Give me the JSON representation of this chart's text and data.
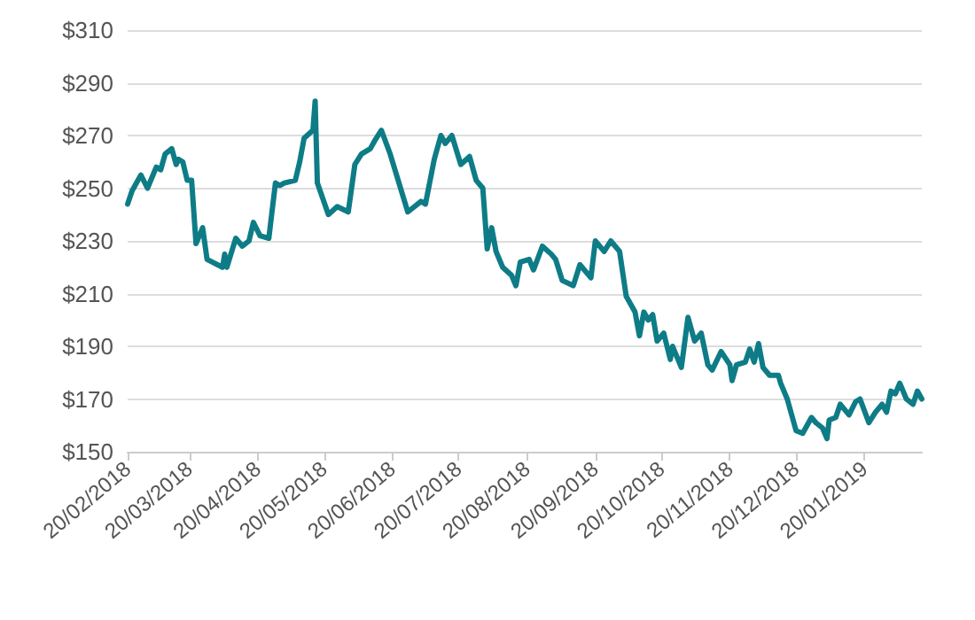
{
  "chart_data": {
    "type": "line",
    "x": [
      "2018-02-20",
      "2018-02-22",
      "2018-02-26",
      "2018-03-01",
      "2018-03-05",
      "2018-03-07",
      "2018-03-09",
      "2018-03-12",
      "2018-03-14",
      "2018-03-15",
      "2018-03-17",
      "2018-03-19",
      "2018-03-21",
      "2018-03-23",
      "2018-03-26",
      "2018-03-28",
      "2018-04-04",
      "2018-04-05",
      "2018-04-06",
      "2018-04-10",
      "2018-04-13",
      "2018-04-16",
      "2018-04-18",
      "2018-04-21",
      "2018-04-25",
      "2018-04-28",
      "2018-04-30",
      "2018-05-02",
      "2018-05-07",
      "2018-05-09",
      "2018-05-11",
      "2018-05-15",
      "2018-05-16",
      "2018-05-17",
      "2018-05-22",
      "2018-05-26",
      "2018-05-31",
      "2018-06-03",
      "2018-06-06",
      "2018-06-10",
      "2018-06-12",
      "2018-06-15",
      "2018-06-19",
      "2018-06-27",
      "2018-07-03",
      "2018-07-05",
      "2018-07-09",
      "2018-07-12",
      "2018-07-14",
      "2018-07-17",
      "2018-07-21",
      "2018-07-25",
      "2018-07-28",
      "2018-07-31",
      "2018-08-02",
      "2018-08-04",
      "2018-08-06",
      "2018-08-09",
      "2018-08-13",
      "2018-08-15",
      "2018-08-17",
      "2018-08-21",
      "2018-08-23",
      "2018-08-27",
      "2018-08-31",
      "2018-09-02",
      "2018-09-05",
      "2018-09-10",
      "2018-09-13",
      "2018-09-18",
      "2018-09-20",
      "2018-09-24",
      "2018-09-27",
      "2018-10-01",
      "2018-10-04",
      "2018-10-08",
      "2018-10-10",
      "2018-10-12",
      "2018-10-14",
      "2018-10-16",
      "2018-10-18",
      "2018-10-21",
      "2018-10-24",
      "2018-10-25",
      "2018-10-29",
      "2018-11-01",
      "2018-11-04",
      "2018-11-07",
      "2018-11-10",
      "2018-11-12",
      "2018-11-16",
      "2018-11-20",
      "2018-11-21",
      "2018-11-23",
      "2018-11-27",
      "2018-11-29",
      "2018-12-01",
      "2018-12-03",
      "2018-12-05",
      "2018-12-08",
      "2018-12-12",
      "2018-12-13",
      "2018-12-16",
      "2018-12-20",
      "2018-12-23",
      "2018-12-27",
      "2018-12-29",
      "2019-01-01",
      "2019-01-03",
      "2019-01-04",
      "2019-01-07",
      "2019-01-09",
      "2019-01-13",
      "2019-01-16",
      "2019-01-18",
      "2019-01-22",
      "2019-01-25",
      "2019-01-28",
      "2019-01-30",
      "2019-02-01",
      "2019-02-03",
      "2019-02-05",
      "2019-02-08",
      "2019-02-11",
      "2019-02-13",
      "2019-02-15"
    ],
    "series": [
      {
        "color": "#0e7c86",
        "values": [
          244,
          249,
          255,
          250,
          258,
          257,
          263,
          265,
          259,
          261,
          260,
          253,
          253,
          229,
          235,
          223,
          220,
          225,
          220,
          231,
          228,
          230,
          237,
          232,
          231,
          252,
          251,
          252,
          253,
          260,
          269,
          272,
          283,
          252,
          240,
          243,
          241,
          259,
          263,
          265,
          268,
          272,
          263,
          241,
          245,
          244,
          261,
          270,
          267,
          270,
          259,
          262,
          253,
          250,
          227,
          235,
          226,
          220,
          217,
          213,
          222,
          223,
          219,
          228,
          225,
          223,
          215,
          213,
          221,
          216,
          230,
          226,
          230,
          226,
          209,
          203,
          194,
          203,
          200,
          202,
          192,
          195,
          185,
          190,
          182,
          201,
          192,
          195,
          183,
          181,
          188,
          183,
          177,
          183,
          184,
          189,
          184,
          191,
          182,
          179,
          179,
          176,
          170,
          158,
          157,
          163,
          161,
          159,
          155,
          162,
          163,
          168,
          164,
          169,
          170,
          161,
          165,
          168,
          165,
          173,
          172,
          176,
          170,
          168,
          173,
          170
        ]
      }
    ],
    "xlim": [
      "2018-02-20",
      "2019-02-15"
    ],
    "xticks": [
      {
        "value": "2018-02-20",
        "label": "20/02/2018"
      },
      {
        "value": "2018-03-20",
        "label": "20/03/2018"
      },
      {
        "value": "2018-04-20",
        "label": "20/04/2018"
      },
      {
        "value": "2018-05-20",
        "label": "20/05/2018"
      },
      {
        "value": "2018-06-20",
        "label": "20/06/2018"
      },
      {
        "value": "2018-07-20",
        "label": "20/07/2018"
      },
      {
        "value": "2018-08-20",
        "label": "20/08/2018"
      },
      {
        "value": "2018-09-20",
        "label": "20/09/2018"
      },
      {
        "value": "2018-10-20",
        "label": "20/10/2018"
      },
      {
        "value": "2018-11-20",
        "label": "20/11/2018"
      },
      {
        "value": "2018-12-20",
        "label": "20/12/2018"
      },
      {
        "value": "2019-01-20",
        "label": "20/01/2019"
      }
    ],
    "ylim": [
      150,
      310
    ],
    "yticks": [
      {
        "value": 150,
        "label": "$150"
      },
      {
        "value": 170,
        "label": "$170"
      },
      {
        "value": 190,
        "label": "$190"
      },
      {
        "value": 210,
        "label": "$210"
      },
      {
        "value": 230,
        "label": "$230"
      },
      {
        "value": 250,
        "label": "$250"
      },
      {
        "value": 270,
        "label": "$270"
      },
      {
        "value": 290,
        "label": "$290"
      },
      {
        "value": 310,
        "label": "$310"
      }
    ],
    "grid": "y",
    "marker": "none",
    "line_style": "solid"
  }
}
